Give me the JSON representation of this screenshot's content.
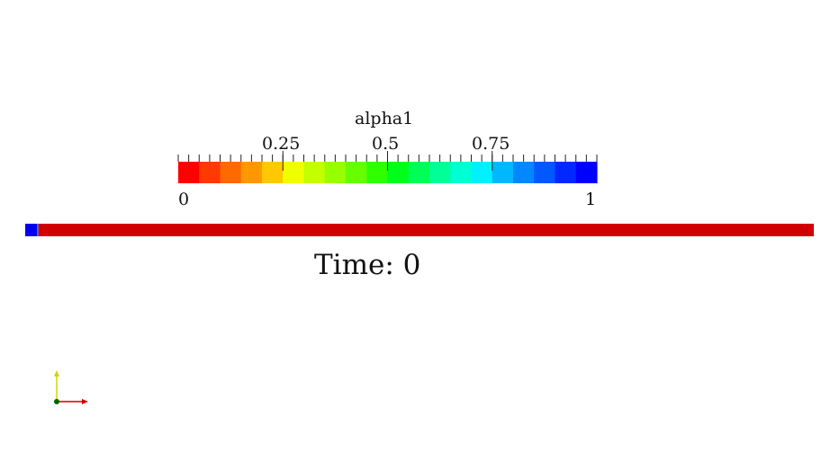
{
  "colorbar": {
    "title": "alpha1",
    "range": [
      0,
      1
    ],
    "tick_labels": [
      {
        "value": 0.25,
        "text": "0.25"
      },
      {
        "value": 0.5,
        "text": "0.5"
      },
      {
        "value": 0.75,
        "text": "0.75"
      }
    ],
    "min_label": "0",
    "max_label": "1",
    "num_segments": 20,
    "num_minor_ticks": 40,
    "colormap": [
      "#ff0000",
      "#ff3a00",
      "#ff6a00",
      "#ff9800",
      "#ffc800",
      "#f0ff00",
      "#c4ff00",
      "#96ff00",
      "#66ff00",
      "#30ff00",
      "#00ff18",
      "#00ff55",
      "#00ff96",
      "#00ffd2",
      "#00f0ff",
      "#00b8ff",
      "#0088ff",
      "#0058ff",
      "#0028ff",
      "#0000ff"
    ]
  },
  "domain": {
    "left_value": 1,
    "left_color": "#0000ee",
    "main_value": 0,
    "main_color": "#d10000"
  },
  "time": {
    "text": "Time: 0"
  },
  "axes": {
    "x_color": "#cc0000",
    "y_color": "#d4d400",
    "origin_color": "#006400"
  }
}
